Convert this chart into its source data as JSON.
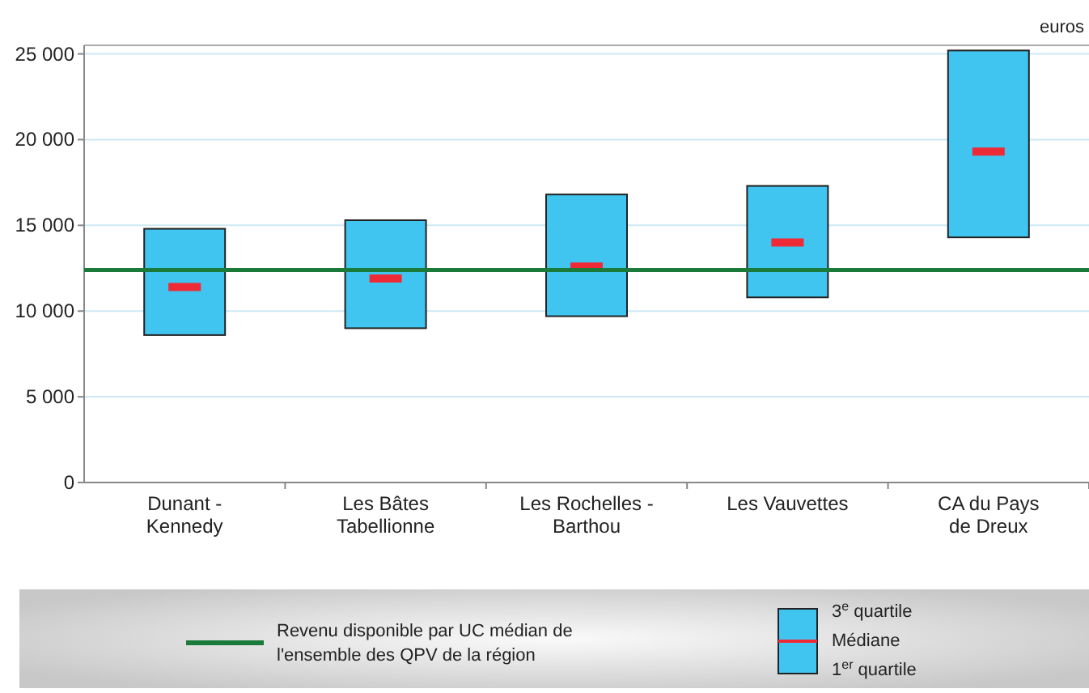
{
  "chart_data": {
    "type": "box",
    "ylabel": "euros",
    "categories": [
      "Dunant -\nKennedy",
      "Les Bâtes\nTabellionne",
      "Les Rochelles -\nBarthou",
      "Les Vauvettes",
      "CA du Pays\nde Dreux"
    ],
    "color": "#40c4f0",
    "boxes": [
      {
        "low": 8600,
        "q1": 8600,
        "median": 11400,
        "q3": 14800,
        "high": 14800
      },
      {
        "low": 9000,
        "q1": 9000,
        "median": 11900,
        "q3": 15300,
        "high": 15300
      },
      {
        "low": 9700,
        "q1": 9700,
        "median": 12600,
        "q3": 16800,
        "high": 16800
      },
      {
        "low": 10800,
        "q1": 10800,
        "median": 14000,
        "q3": 17300,
        "high": 17300
      },
      {
        "low": 14300,
        "q1": 14300,
        "median": 19300,
        "q3": 25200,
        "high": 25200
      }
    ],
    "ylim": [
      0,
      25500
    ],
    "yticks": [
      {
        "value": 0,
        "label": "0"
      },
      {
        "value": 5000,
        "label": "5 000"
      },
      {
        "value": 10000,
        "label": "10 000"
      },
      {
        "value": 15000,
        "label": "15 000"
      },
      {
        "value": 20000,
        "label": "20 000"
      },
      {
        "value": 25000,
        "label": "25 000"
      }
    ],
    "grid": "y",
    "legend": "bottom",
    "ref_lines": [
      {
        "axis": "y",
        "value": 12400,
        "label": "Revenu disponible par UC médian de\nl'ensemble des QPV de la région",
        "color": "#1a7a3a"
      }
    ],
    "annotations": [
      "3$^{e}$ quartile",
      "Médiane",
      "1$^{er}$ quartile"
    ]
  }
}
